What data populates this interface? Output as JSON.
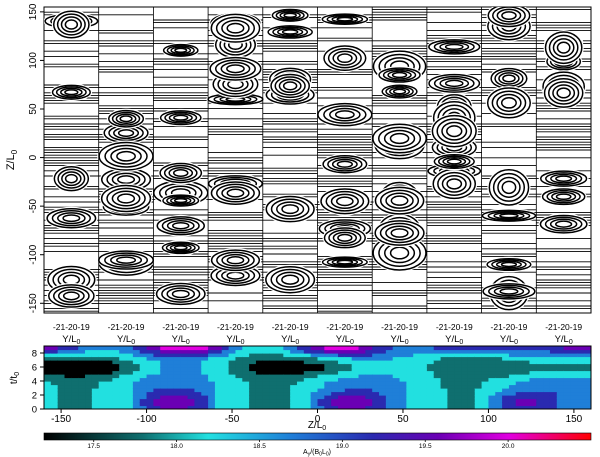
{
  "chart_data": [
    {
      "type": "contour",
      "xlabel": "Y/L",
      "xlabel_sub": "0",
      "ylabel": "Z/L",
      "ylabel_sub": "0",
      "ylim": [
        -160,
        155
      ],
      "yticks": [
        150,
        100,
        50,
        0,
        -50,
        -100,
        -150
      ],
      "panel_count": 10,
      "panel_xtick_labels": [
        "-21",
        "-20",
        "-19"
      ]
    },
    {
      "type": "heatmap",
      "xlabel": "Z/L",
      "xlabel_sub": "0",
      "ylabel": "t/t",
      "ylabel_sub": "0",
      "xlim": [
        -160,
        160
      ],
      "ylim": [
        0,
        9
      ],
      "xticks": [
        -150,
        -100,
        -50,
        0,
        50,
        100,
        150
      ],
      "yticks": [
        0,
        2,
        4,
        6,
        8
      ],
      "colorbar": {
        "label": "A",
        "label_sub": "y",
        "label_rest": "/(B",
        "label_sub2": "0",
        "label_end": "L",
        "label_sub3": "0",
        "label_close": ")",
        "range": [
          17.2,
          20.5
        ],
        "ticks": [
          "17.5",
          "18.0",
          "18.5",
          "19.0",
          "19.5",
          "20.0"
        ],
        "tick_values": [
          17.5,
          18.0,
          18.5,
          19.0,
          19.5,
          20.0
        ]
      }
    }
  ]
}
